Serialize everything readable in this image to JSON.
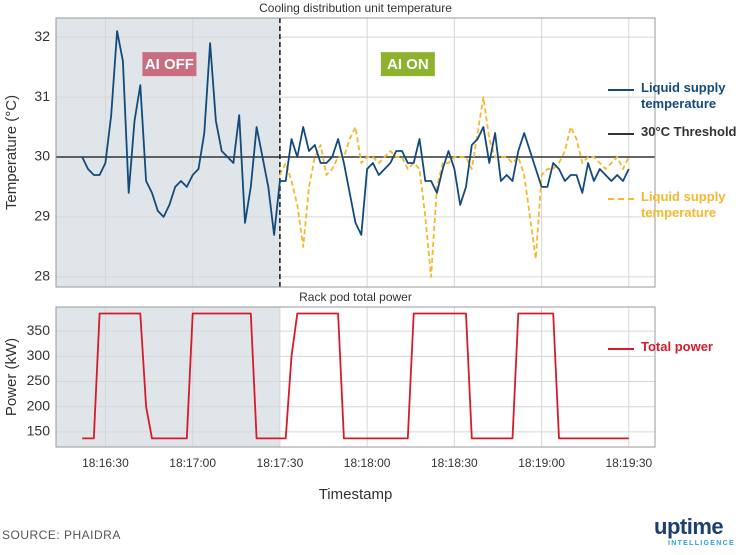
{
  "chart_data": [
    {
      "type": "line",
      "title": "Cooling distribution unit temperature",
      "ylabel": "Temperature (°C)",
      "ylim": [
        27.83,
        32.32
      ],
      "yticks": [
        28,
        29,
        30,
        31,
        32
      ],
      "xlim": [
        "18:16:13",
        "18:19:39"
      ],
      "grid": true,
      "ai_off_end": "18:17:30",
      "divider_dashed": true,
      "annotations": [
        {
          "text": "AI OFF",
          "x": "18:16:52",
          "y": 31.55,
          "color": "#c96e80"
        },
        {
          "text": "AI ON",
          "x": "18:18:14",
          "y": 31.55,
          "color": "#8db32e"
        }
      ],
      "threshold": {
        "name": "30°C Threshold",
        "value": 30,
        "color": "#333333"
      },
      "x": [
        "18:16:22",
        "18:16:24",
        "18:16:26",
        "18:16:28",
        "18:16:30",
        "18:16:32",
        "18:16:34",
        "18:16:36",
        "18:16:38",
        "18:16:40",
        "18:16:42",
        "18:16:44",
        "18:16:46",
        "18:16:48",
        "18:16:50",
        "18:16:52",
        "18:16:54",
        "18:16:56",
        "18:16:58",
        "18:17:00",
        "18:17:02",
        "18:17:04",
        "18:17:06",
        "18:17:08",
        "18:17:10",
        "18:17:12",
        "18:17:14",
        "18:17:16",
        "18:17:18",
        "18:17:20",
        "18:17:22",
        "18:17:24",
        "18:17:26",
        "18:17:28",
        "18:17:30",
        "18:17:32",
        "18:17:34",
        "18:17:36",
        "18:17:38",
        "18:17:40",
        "18:17:42",
        "18:17:44",
        "18:17:46",
        "18:17:48",
        "18:17:50",
        "18:17:52",
        "18:17:54",
        "18:17:56",
        "18:17:58",
        "18:18:00",
        "18:18:02",
        "18:18:04",
        "18:18:06",
        "18:18:08",
        "18:18:10",
        "18:18:12",
        "18:18:14",
        "18:18:16",
        "18:18:18",
        "18:18:20",
        "18:18:22",
        "18:18:24",
        "18:18:26",
        "18:18:28",
        "18:18:30",
        "18:18:32",
        "18:18:34",
        "18:18:36",
        "18:18:38",
        "18:18:40",
        "18:18:42",
        "18:18:44",
        "18:18:46",
        "18:18:48",
        "18:18:50",
        "18:18:52",
        "18:18:54",
        "18:18:56",
        "18:18:58",
        "18:19:00",
        "18:19:02",
        "18:19:04",
        "18:19:06",
        "18:19:08",
        "18:19:10",
        "18:19:12",
        "18:19:14",
        "18:19:16",
        "18:19:18",
        "18:19:20",
        "18:19:22",
        "18:19:24",
        "18:19:26",
        "18:19:28",
        "18:19:30"
      ],
      "series": [
        {
          "name": "Liquid supply temperature",
          "color": "#134a7c",
          "style": "solid",
          "values": [
            30.0,
            29.8,
            29.7,
            29.7,
            29.9,
            30.7,
            32.1,
            31.6,
            29.4,
            30.6,
            31.2,
            29.6,
            29.4,
            29.1,
            29.0,
            29.2,
            29.5,
            29.6,
            29.5,
            29.7,
            29.8,
            30.4,
            31.9,
            30.6,
            30.1,
            30.0,
            29.9,
            30.7,
            28.9,
            29.5,
            30.5,
            30.0,
            29.5,
            28.7,
            29.6,
            29.6,
            30.3,
            30.0,
            30.5,
            30.1,
            30.2,
            29.9,
            29.9,
            30.0,
            30.3,
            29.9,
            29.4,
            28.9,
            28.7,
            29.8,
            29.9,
            29.7,
            29.8,
            29.9,
            30.1,
            30.1,
            29.9,
            29.9,
            30.3,
            29.6,
            29.6,
            29.4,
            29.8,
            30.1,
            29.8,
            29.2,
            29.5,
            30.2,
            30.3,
            30.5,
            29.9,
            30.4,
            29.6,
            29.7,
            29.6,
            30.1,
            30.4,
            30.1,
            29.8,
            29.5,
            29.5,
            29.9,
            29.8,
            29.6,
            29.7,
            29.7,
            29.4,
            29.9,
            29.6,
            29.8,
            29.7,
            29.6,
            29.7,
            29.6,
            29.8
          ]
        },
        {
          "name": "Liquid supply temperature",
          "color": "#f5b82e",
          "style": "dashed",
          "values": [
            null,
            null,
            null,
            null,
            null,
            null,
            null,
            null,
            null,
            null,
            null,
            null,
            null,
            null,
            null,
            null,
            null,
            null,
            null,
            null,
            null,
            null,
            null,
            null,
            null,
            null,
            null,
            null,
            null,
            null,
            null,
            null,
            null,
            null,
            29.7,
            29.9,
            29.6,
            29.2,
            28.5,
            29.5,
            30.0,
            30.2,
            29.7,
            29.8,
            30.0,
            30.0,
            30.3,
            30.5,
            29.9,
            30.0,
            30.0,
            29.9,
            30.0,
            30.1,
            30.0,
            30.0,
            29.8,
            29.9,
            29.8,
            29.0,
            28.0,
            29.5,
            29.9,
            29.9,
            30.0,
            30.0,
            30.0,
            29.8,
            30.4,
            31.0,
            30.3,
            30.0,
            30.0,
            30.0,
            29.9,
            30.0,
            29.7,
            29.0,
            28.3,
            29.7,
            29.8,
            29.8,
            29.9,
            30.1,
            30.5,
            30.3,
            29.9,
            30.0,
            30.0,
            29.9,
            29.8,
            29.9,
            30.0,
            29.8,
            30.0
          ]
        }
      ]
    },
    {
      "type": "line",
      "title": "Rack pod total power",
      "ylabel": "Power (kW)",
      "xlabel": "Timestamp",
      "ylim": [
        120,
        398
      ],
      "yticks": [
        150,
        200,
        250,
        300,
        350
      ],
      "xlim": [
        "18:16:13",
        "18:19:39"
      ],
      "xticks": [
        "18:16:30",
        "18:17:00",
        "18:17:30",
        "18:18:00",
        "18:18:30",
        "18:19:00",
        "18:19:30"
      ],
      "grid": true,
      "ai_off_end": "18:17:30",
      "x": [
        "18:16:22",
        "18:16:24",
        "18:16:26",
        "18:16:28",
        "18:16:30",
        "18:16:32",
        "18:16:34",
        "18:16:36",
        "18:16:38",
        "18:16:40",
        "18:16:42",
        "18:16:44",
        "18:16:46",
        "18:16:48",
        "18:16:50",
        "18:16:52",
        "18:16:54",
        "18:16:56",
        "18:16:58",
        "18:17:00",
        "18:17:02",
        "18:17:04",
        "18:17:06",
        "18:17:08",
        "18:17:10",
        "18:17:12",
        "18:17:14",
        "18:17:16",
        "18:17:18",
        "18:17:20",
        "18:17:22",
        "18:17:24",
        "18:17:26",
        "18:17:28",
        "18:17:30",
        "18:17:32",
        "18:17:34",
        "18:17:36",
        "18:17:38",
        "18:17:40",
        "18:17:42",
        "18:17:44",
        "18:17:46",
        "18:17:48",
        "18:17:50",
        "18:17:52",
        "18:17:54",
        "18:17:56",
        "18:17:58",
        "18:18:00",
        "18:18:02",
        "18:18:04",
        "18:18:06",
        "18:18:08",
        "18:18:10",
        "18:18:12",
        "18:18:14",
        "18:18:16",
        "18:18:18",
        "18:18:20",
        "18:18:22",
        "18:18:24",
        "18:18:26",
        "18:18:28",
        "18:18:30",
        "18:18:32",
        "18:18:34",
        "18:18:36",
        "18:18:38",
        "18:18:40",
        "18:18:42",
        "18:18:44",
        "18:18:46",
        "18:18:48",
        "18:18:50",
        "18:18:52",
        "18:18:54",
        "18:18:56",
        "18:18:58",
        "18:19:00",
        "18:19:02",
        "18:19:04",
        "18:19:06",
        "18:19:08",
        "18:19:10",
        "18:19:12",
        "18:19:14",
        "18:19:16",
        "18:19:18",
        "18:19:20",
        "18:19:22",
        "18:19:24",
        "18:19:26",
        "18:19:28",
        "18:19:30"
      ],
      "series": [
        {
          "name": "Total power",
          "color": "#d71a2c",
          "style": "solid",
          "values": [
            137,
            137,
            137,
            385,
            385,
            385,
            385,
            385,
            385,
            385,
            385,
            200,
            137,
            137,
            137,
            137,
            137,
            137,
            137,
            385,
            385,
            385,
            385,
            385,
            385,
            385,
            385,
            385,
            385,
            385,
            137,
            137,
            137,
            137,
            137,
            137,
            300,
            385,
            385,
            385,
            385,
            385,
            385,
            385,
            385,
            137,
            137,
            137,
            137,
            137,
            137,
            137,
            137,
            137,
            137,
            137,
            137,
            385,
            385,
            385,
            385,
            385,
            385,
            385,
            385,
            385,
            385,
            137,
            137,
            137,
            137,
            137,
            137,
            137,
            137,
            385,
            385,
            385,
            385,
            385,
            385,
            385,
            137,
            137,
            137,
            137,
            137,
            137,
            137,
            137,
            137,
            137,
            137,
            137,
            137
          ]
        }
      ]
    }
  ],
  "footer": {
    "source": "SOURCE: PHAIDRA",
    "logo": "uptime",
    "logo_sub": "INTELLIGENCE"
  }
}
